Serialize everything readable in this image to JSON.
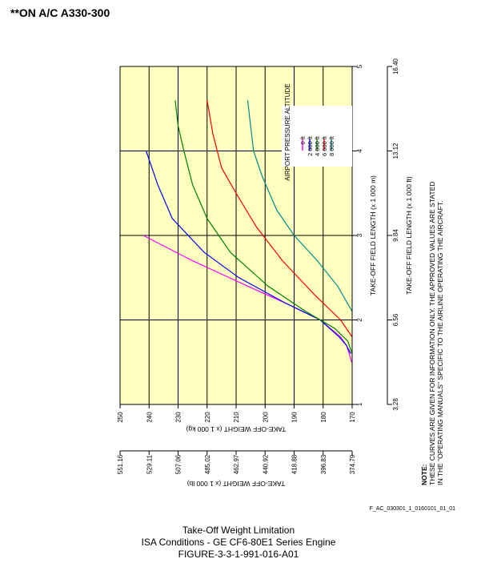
{
  "header": {
    "applicability": "**ON A/C A330-300"
  },
  "footer": {
    "figure_id": "F_AC_030301_1_0160101_01_01",
    "caption_line1": "Take-Off Weight Limitation",
    "caption_line2": "ISA Conditions - GE CF6-80E1 Series Engine",
    "caption_line3": "FIGURE-3-3-1-991-016-A01"
  },
  "note": {
    "label": "NOTE:",
    "line1": "THESE CURVES ARE GIVEN FOR INFORMATION ONLY. THE APPROVED VALUES ARE STATED",
    "line2": "IN THE \"OPERATING MANUALS\" SPECIFIC TO THE AIRLINE OPERATING THE AIRCRAFT."
  },
  "colors": {
    "plot_background": "#ffffc0"
  },
  "chart_data": {
    "type": "line",
    "title": "",
    "x_axis_primary": {
      "label": "TAKE-OFF FIELD LENGTH (x 1 000 m)",
      "range": [
        1,
        5
      ],
      "ticks": [
        "1",
        "2",
        "3",
        "4",
        "5"
      ]
    },
    "x_axis_secondary": {
      "label": "TAKE-OFF FIELD LENGTH (x 1 000 ft)",
      "ticks": [
        "3.28",
        "6.56",
        "9.84",
        "13.12",
        "16.40"
      ]
    },
    "y_axis_primary": {
      "label": "TAKE-OFF WEIGHT (x 1 000 kg)",
      "range": [
        170,
        250
      ],
      "ticks": [
        "170",
        "180",
        "190",
        "200",
        "210",
        "220",
        "230",
        "240",
        "250"
      ]
    },
    "y_axis_secondary": {
      "label": "TAKE-OFF WEIGHT (x 1 000 lb)",
      "ticks": [
        "374.79",
        "396.83",
        "418.88",
        "440.92",
        "462.97",
        "485.02",
        "507.06",
        "529.11",
        "551.16"
      ]
    },
    "grid": true,
    "legend": {
      "title": "AIRPORT PRESSURE ALTITUDE",
      "placement": "top-left"
    },
    "series": [
      {
        "name": "0 ft",
        "color": "#ff00ff",
        "x": [
          1.5,
          1.6,
          1.7,
          1.8,
          2.0,
          2.2,
          2.4,
          2.7,
          3.0
        ],
        "y": [
          170.2,
          171,
          172,
          174,
          181,
          193,
          206,
          225,
          242
        ]
      },
      {
        "name": "2 000 ft",
        "color": "#0000ff",
        "x": [
          1.6,
          1.7,
          1.8,
          2.0,
          2.2,
          2.5,
          2.8,
          3.2,
          3.6,
          4.0
        ],
        "y": [
          170.5,
          172,
          174.5,
          181,
          193,
          209,
          221,
          232,
          237,
          241
        ]
      },
      {
        "name": "4 000 ft",
        "color": "#008000",
        "x": [
          1.6,
          1.75,
          1.9,
          2.1,
          2.4,
          2.8,
          3.2,
          3.6,
          4.0,
          4.3,
          4.6
        ],
        "y": [
          170,
          171.5,
          176,
          186,
          199,
          212,
          220,
          225,
          228,
          230,
          231
        ]
      },
      {
        "name": "6 000 ft",
        "color": "#ff0000",
        "x": [
          1.8,
          2.0,
          2.3,
          2.7,
          3.1,
          3.5,
          3.8,
          4.2,
          4.6
        ],
        "y": [
          170,
          174,
          183,
          194,
          203,
          210,
          215,
          218,
          220
        ]
      },
      {
        "name": "8 000 ft",
        "color": "#008b8b",
        "x": [
          2.1,
          2.4,
          2.7,
          3.0,
          3.3,
          3.7,
          4.0,
          4.3,
          4.6
        ],
        "y": [
          170,
          175,
          182,
          190,
          196,
          201,
          204,
          205,
          206
        ]
      }
    ]
  }
}
